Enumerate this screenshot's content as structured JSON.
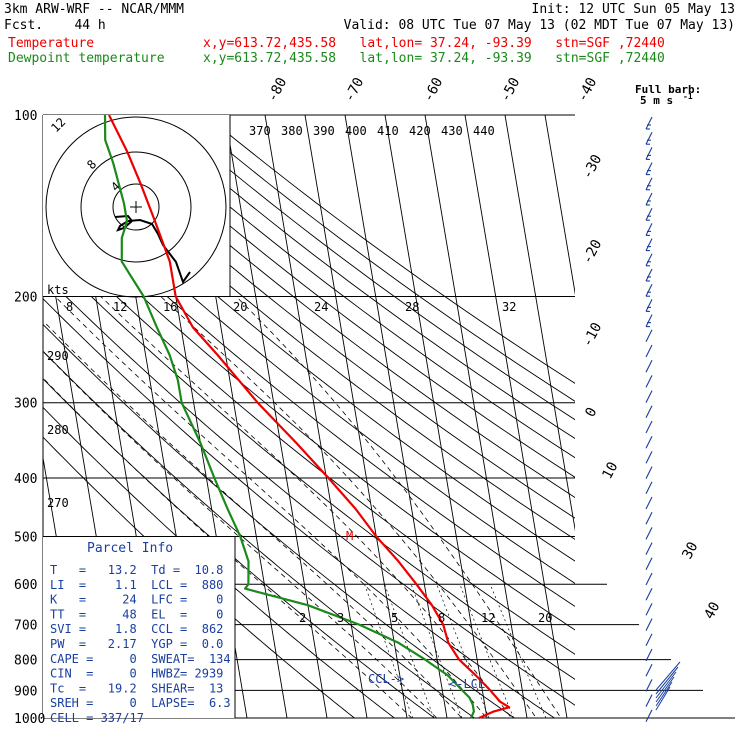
{
  "header": {
    "model": "3km ARW-WRF -- NCAR/MMM",
    "init": "Init: 12 UTC Sun 05 May 13",
    "fcst": "Fcst.    44 h",
    "valid": "Valid: 08 UTC Tue 07 May 13 (02 MDT Tue 07 May 13)",
    "temp_label": "Temperature",
    "temp_info": "x,y=613.72,435.58   lat,lon= 37.24, -93.39   stn=SGF ,72440",
    "dew_label": "Dewpoint temperature",
    "dew_info": "x,y=613.72,435.58   lat,lon= 37.24, -93.39   stn=SGF ,72440"
  },
  "colors": {
    "temperature": "#ee0000",
    "dewpoint": "#1a8a1a",
    "parcel": "#1a3fa0",
    "hodograph": "#000000"
  },
  "axis": {
    "pressure_labels": [
      "100",
      "200",
      "300",
      "400",
      "500",
      "600",
      "700",
      "800",
      "900",
      "1000"
    ],
    "pressure_range_hpa": [
      1000,
      100
    ],
    "skew_temp_labels": [
      "-80",
      "-70",
      "-60",
      "-50",
      "-40",
      "-30",
      "-20",
      "-10",
      "0",
      "10",
      "20",
      "30",
      "40"
    ],
    "theta_labels": [
      "370",
      "380",
      "390",
      "400",
      "410",
      "420",
      "430",
      "440"
    ],
    "theta_left_labels": [
      "290",
      "280",
      "270"
    ],
    "mixing_ratio_labels": [
      "2",
      "3",
      "5",
      "8",
      "12",
      "20"
    ],
    "speed_labels": [
      "kts",
      "8",
      "12",
      "16",
      "20",
      "24",
      "28",
      "32"
    ],
    "hodo_ring_labels": [
      "8",
      "4",
      "12"
    ]
  },
  "barb_legend": {
    "line1": "Full barb:",
    "line2": "5 m s",
    "exponent": "-1"
  },
  "annotations": {
    "ccl": "CCL->",
    "lcl": "<-LCL",
    "mark": "M"
  },
  "parcel": {
    "title": "Parcel Info",
    "lines": [
      "T   =   13.2  Td =  10.8",
      "LI  =    1.1  LCL =  880",
      "K   =     24  LFC =    0",
      "TT  =     48  EL  =    0",
      "SVI =    1.8  CCL =  862",
      "PW  =   2.17  YGP =  0.0",
      "CAPE =     0  SWEAT=  134",
      "CIN  =     0  HWBZ= 2939",
      "Tc  =   19.2  SHEAR=  13",
      "SREH =     0  LAPSE=  6.3",
      "CELL = 337/17"
    ]
  },
  "chart_data": {
    "type": "line",
    "title": "3km ARW-WRF -- NCAR/MMM",
    "y_axis": "pressure (hPa), log scale",
    "series": [
      {
        "name": "Temperature",
        "color": "#ee0000",
        "points": [
          [
            1000,
            8
          ],
          [
            975,
            12
          ],
          [
            960,
            16
          ],
          [
            940,
            14
          ],
          [
            920,
            13
          ],
          [
            900,
            12
          ],
          [
            850,
            9
          ],
          [
            800,
            5.5
          ],
          [
            750,
            3.5
          ],
          [
            700,
            3
          ],
          [
            650,
            1
          ],
          [
            600,
            -2
          ],
          [
            550,
            -5.5
          ],
          [
            500,
            -10
          ],
          [
            450,
            -14
          ],
          [
            400,
            -19.5
          ],
          [
            350,
            -26
          ],
          [
            300,
            -34
          ],
          [
            250,
            -42
          ],
          [
            225,
            -47
          ],
          [
            200,
            -50
          ],
          [
            175,
            -50
          ],
          [
            150,
            -52
          ],
          [
            130,
            -54
          ],
          [
            115,
            -56
          ],
          [
            100,
            -59
          ]
        ]
      },
      {
        "name": "Dewpoint temperature",
        "color": "#1a8a1a",
        "points": [
          [
            1000,
            6
          ],
          [
            975,
            7
          ],
          [
            950,
            7
          ],
          [
            925,
            6.5
          ],
          [
            900,
            5
          ],
          [
            850,
            2
          ],
          [
            800,
            -3
          ],
          [
            750,
            -9
          ],
          [
            700,
            -18
          ],
          [
            650,
            -30
          ],
          [
            610,
            -45
          ],
          [
            600,
            -44
          ],
          [
            550,
            -43
          ],
          [
            500,
            -44
          ],
          [
            450,
            -46
          ],
          [
            400,
            -48
          ],
          [
            350,
            -50
          ],
          [
            300,
            -53
          ],
          [
            275,
            -53
          ],
          [
            250,
            -54
          ],
          [
            225,
            -56
          ],
          [
            200,
            -58
          ],
          [
            175,
            -62
          ],
          [
            160,
            -61
          ],
          [
            150,
            -59
          ],
          [
            140,
            -59
          ],
          [
            120,
            -60
          ],
          [
            110,
            -61
          ],
          [
            100,
            -60
          ]
        ]
      }
    ]
  }
}
